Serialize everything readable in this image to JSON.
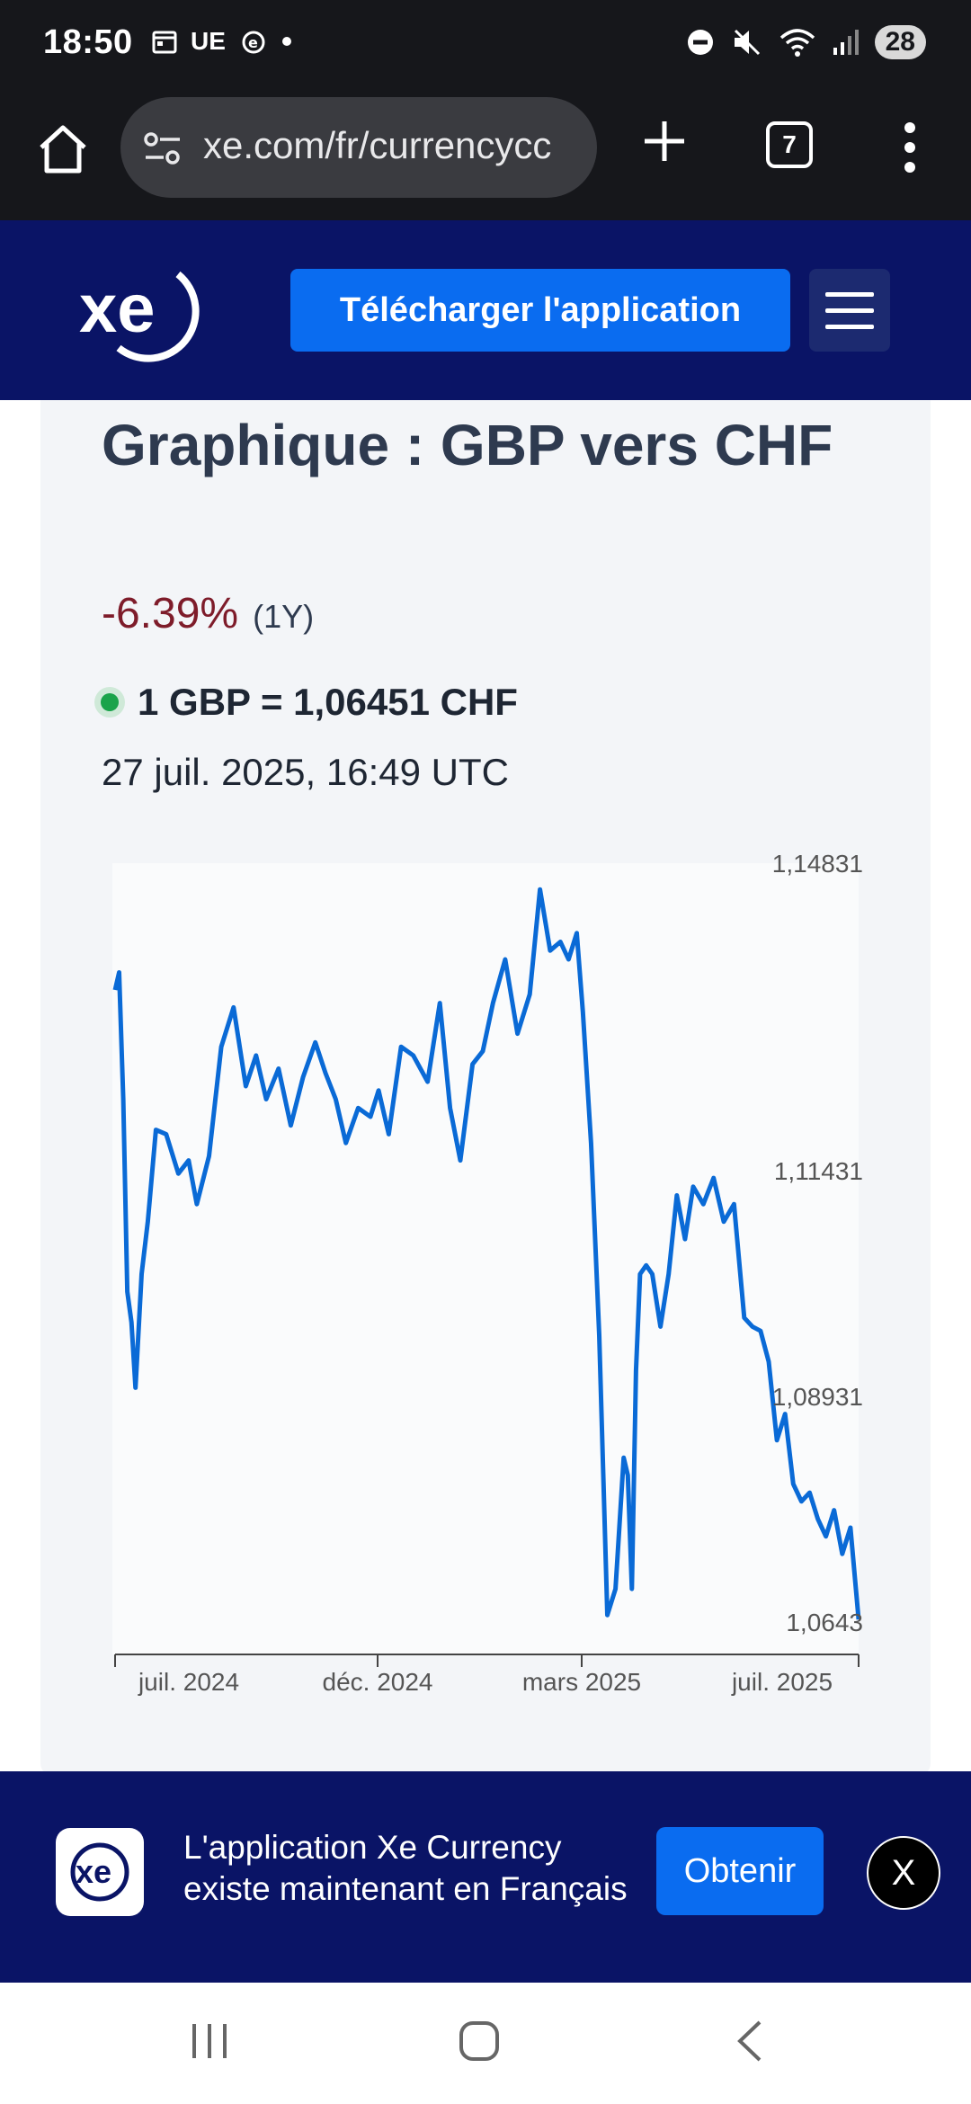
{
  "status_bar": {
    "time": "18:50",
    "carrier_text": "UE",
    "battery": "28"
  },
  "browser": {
    "url": "xe.com/fr/currencycc",
    "tab_count": "7"
  },
  "header": {
    "logo_text": "xe",
    "download_label": "Télécharger l'application"
  },
  "card": {
    "title": "Graphique : GBP vers CHF",
    "change_pct": "-6.39%",
    "change_period": "(1Y)",
    "rate": "1 GBP = 1,06451 CHF",
    "timestamp": "27 juil. 2025, 16:49 UTC"
  },
  "chart_data": {
    "type": "line",
    "title": "",
    "xlabel": "",
    "ylabel": "",
    "x_ticks": [
      "juil. 2024",
      "déc. 2024",
      "mars 2025",
      "juil. 2025"
    ],
    "y_ticks": [
      "1,14831",
      "1,11431",
      "1,08931",
      "1,0643"
    ],
    "ylim": [
      1.0605,
      1.151
    ],
    "grid": false,
    "color": "#0a6ad6",
    "series": [
      {
        "x": [
          "2024-07-28",
          "2024-07-30",
          "2024-08-01",
          "2024-08-03",
          "2024-08-05",
          "2024-08-07",
          "2024-08-10",
          "2024-08-13",
          "2024-08-17",
          "2024-08-22",
          "2024-08-28",
          "2024-09-02",
          "2024-09-06",
          "2024-09-12",
          "2024-09-18",
          "2024-09-24",
          "2024-09-30",
          "2024-10-05",
          "2024-10-10",
          "2024-10-16",
          "2024-10-22",
          "2024-10-28",
          "2024-11-03",
          "2024-11-08",
          "2024-11-13",
          "2024-11-18",
          "2024-11-24",
          "2024-11-30",
          "2024-12-04",
          "2024-12-09",
          "2024-12-15",
          "2024-12-21",
          "2024-12-28",
          "2025-01-03",
          "2025-01-08",
          "2025-01-13",
          "2025-01-19",
          "2025-01-24",
          "2025-01-29",
          "2025-02-04",
          "2025-02-10",
          "2025-02-16",
          "2025-02-21",
          "2025-02-26",
          "2025-03-03",
          "2025-03-07",
          "2025-03-11",
          "2025-03-14",
          "2025-03-18",
          "2025-03-22",
          "2025-03-26",
          "2025-03-30",
          "2025-04-03",
          "2025-04-05",
          "2025-04-07",
          "2025-04-09",
          "2025-04-11",
          "2025-04-14",
          "2025-04-17",
          "2025-04-21",
          "2025-04-25",
          "2025-04-29",
          "2025-05-03",
          "2025-05-07",
          "2025-05-12",
          "2025-05-17",
          "2025-05-22",
          "2025-05-27",
          "2025-06-01",
          "2025-06-05",
          "2025-06-09",
          "2025-06-13",
          "2025-06-17",
          "2025-06-21",
          "2025-06-25",
          "2025-06-29",
          "2025-07-03",
          "2025-07-07",
          "2025-07-11",
          "2025-07-15",
          "2025-07-19",
          "2025-07-23",
          "2025-07-27"
        ],
        "values": [
          1.1365,
          1.1385,
          1.124,
          1.102,
          1.0985,
          1.091,
          1.104,
          1.11,
          1.1205,
          1.12,
          1.1155,
          1.117,
          1.112,
          1.1175,
          1.13,
          1.1345,
          1.1255,
          1.129,
          1.124,
          1.1275,
          1.121,
          1.1265,
          1.1305,
          1.127,
          1.124,
          1.119,
          1.123,
          1.122,
          1.125,
          1.12,
          1.13,
          1.129,
          1.126,
          1.135,
          1.123,
          1.117,
          1.128,
          1.1295,
          1.135,
          1.14,
          1.1315,
          1.136,
          1.148,
          1.141,
          1.142,
          1.14,
          1.143,
          1.134,
          1.119,
          1.097,
          1.065,
          1.068,
          1.083,
          1.081,
          1.068,
          1.093,
          1.104,
          1.105,
          1.104,
          1.098,
          1.104,
          1.113,
          1.108,
          1.114,
          1.112,
          1.115,
          1.11,
          1.112,
          1.099,
          1.098,
          1.0975,
          1.094,
          1.085,
          1.088,
          1.08,
          1.078,
          1.079,
          1.076,
          1.074,
          1.077,
          1.072,
          1.075,
          1.0645
        ]
      }
    ]
  },
  "banner": {
    "logo_text": "xe",
    "message": "L'application Xe Currency existe maintenant en Français",
    "get_label": "Obtenir",
    "close_label": "X"
  }
}
